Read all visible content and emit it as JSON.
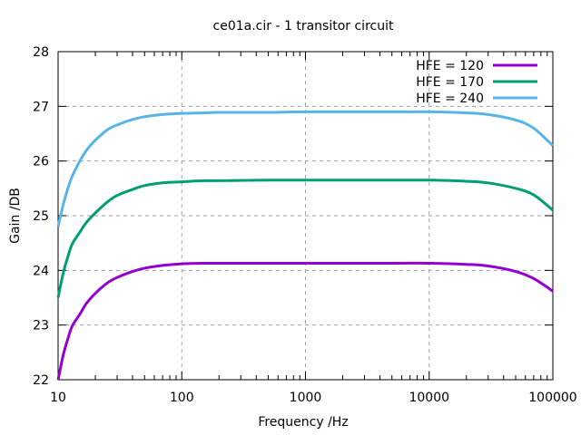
{
  "chart_data": {
    "type": "line",
    "title": "ce01a.cir - 1 transitor circuit",
    "xlabel": "Frequency /Hz",
    "ylabel": "Gain /DB",
    "x_scale": "log",
    "xlim": [
      10,
      100000
    ],
    "ylim": [
      22,
      28
    ],
    "x_ticks": [
      10,
      100,
      1000,
      10000,
      100000
    ],
    "x_tick_labels": [
      "10",
      "100",
      "1000",
      "10000",
      "100000"
    ],
    "y_ticks": [
      22,
      23,
      24,
      25,
      26,
      27,
      28
    ],
    "y_tick_labels": [
      "22",
      "23",
      "24",
      "25",
      "26",
      "27",
      "28"
    ],
    "grid": true,
    "legend_position": "top-right",
    "x": [
      10,
      11,
      12,
      13,
      15,
      17,
      20,
      25,
      30,
      40,
      50,
      70,
      100,
      150,
      200,
      500,
      1000,
      5000,
      10000,
      20000,
      30000,
      50000,
      70000,
      100000
    ],
    "series": [
      {
        "name": "HFE = 120",
        "color": "#9400d3",
        "values": [
          22.0,
          22.45,
          22.75,
          22.98,
          23.2,
          23.4,
          23.58,
          23.77,
          23.87,
          23.98,
          24.04,
          24.09,
          24.12,
          24.13,
          24.13,
          24.13,
          24.13,
          24.13,
          24.13,
          24.11,
          24.08,
          23.98,
          23.85,
          23.62
        ]
      },
      {
        "name": "HFE = 170",
        "color": "#009e73",
        "values": [
          23.5,
          23.95,
          24.25,
          24.48,
          24.7,
          24.88,
          25.05,
          25.25,
          25.37,
          25.48,
          25.55,
          25.6,
          25.62,
          25.64,
          25.64,
          25.65,
          25.65,
          25.65,
          25.65,
          25.63,
          25.6,
          25.5,
          25.38,
          25.1
        ]
      },
      {
        "name": "HFE = 240",
        "color": "#56b4e9",
        "values": [
          24.8,
          25.2,
          25.5,
          25.72,
          26.0,
          26.2,
          26.38,
          26.57,
          26.66,
          26.76,
          26.81,
          26.85,
          26.87,
          26.88,
          26.89,
          26.89,
          26.9,
          26.9,
          26.9,
          26.88,
          26.85,
          26.75,
          26.6,
          26.28
        ]
      }
    ]
  }
}
